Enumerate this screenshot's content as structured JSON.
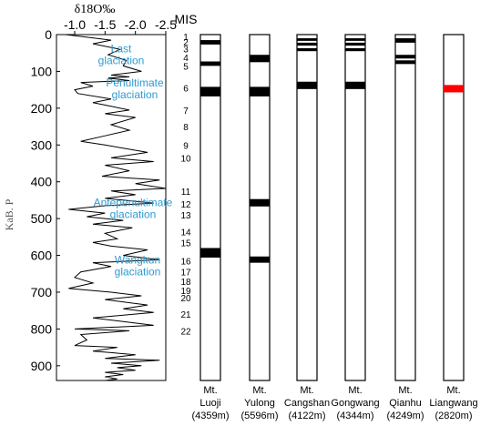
{
  "chart_data": [
    {
      "type": "line",
      "title": "",
      "xlabel": "δ18O‰",
      "ylabel": "KaB. P",
      "xlim": [
        -0.7,
        -2.5
      ],
      "ylim": [
        0,
        940
      ],
      "x_ticks": [
        "-1.0",
        "-1.5",
        "-2.0",
        "-2.5"
      ],
      "y_ticks": [
        "0",
        "100",
        "200",
        "300",
        "400",
        "500",
        "600",
        "700",
        "800",
        "900"
      ],
      "series": [
        {
          "x": [
            -0.85,
            -1.1,
            -1.6,
            -1.3,
            -1.75,
            -1.55,
            -1.85,
            -1.8,
            -2.1,
            -1.6,
            -1.9,
            -1.55,
            -1.9,
            -1.1,
            -1.3,
            -1.0,
            -1.05,
            -1.6,
            -1.3,
            -1.6,
            -1.9,
            -1.5,
            -2.0,
            -1.6,
            -1.9,
            -1.5,
            -1.1,
            -1.5,
            -2.2,
            -1.6,
            -2.3,
            -1.5,
            -1.9,
            -1.45,
            -2.4,
            -2.0,
            -2.5,
            -1.6,
            -2.0,
            -1.5,
            -2.3,
            -1.5,
            -0.9,
            -1.5,
            -1.2,
            -1.8,
            -1.3,
            -1.95,
            -1.5,
            -1.7,
            -1.3,
            -1.6,
            -2.2,
            -1.8,
            -2.4,
            -1.3,
            -1.6,
            -1.1,
            -1.0,
            -1.3,
            -0.9,
            -1.6,
            -2.1,
            -1.5,
            -2.2,
            -1.8,
            -2.3,
            -1.3,
            -1.8,
            -2.3,
            -1.0,
            -1.9,
            -1.1,
            -1.2,
            -1.0,
            -1.7,
            -1.3,
            -2.0,
            -1.5,
            -2.4,
            -1.6,
            -2.1,
            -1.7,
            -2.0,
            -1.5,
            -1.8,
            -1.5,
            -1.7,
            -1.5
          ],
          "y": [
            0,
            5,
            15,
            25,
            40,
            55,
            70,
            85,
            100,
            110,
            115,
            118,
            125,
            130,
            140,
            150,
            160,
            175,
            185,
            195,
            205,
            215,
            225,
            245,
            260,
            275,
            290,
            300,
            320,
            335,
            345,
            355,
            370,
            385,
            395,
            405,
            418,
            425,
            435,
            445,
            458,
            465,
            475,
            485,
            495,
            505,
            515,
            525,
            540,
            555,
            565,
            575,
            585,
            600,
            612,
            620,
            630,
            645,
            660,
            675,
            690,
            700,
            710,
            720,
            735,
            745,
            755,
            770,
            780,
            790,
            800,
            805,
            815,
            830,
            845,
            850,
            860,
            870,
            880,
            885,
            893,
            900,
            905,
            912,
            918,
            924,
            930,
            936,
            940
          ]
        }
      ],
      "annotations": [
        "Last glaciation",
        "Penultimate glaciation",
        "Antepenultimate glaciation",
        "Wangkun glaciation"
      ],
      "glaciation_y": [
        65,
        158,
        483,
        640
      ],
      "grid": false
    },
    {
      "type": "bar",
      "title": "",
      "mis_label": "MIS",
      "mis_stages": [
        {
          "label": "1",
          "y": 5
        },
        {
          "label": "2",
          "y": 20
        },
        {
          "label": "3",
          "y": 38
        },
        {
          "label": "4",
          "y": 62
        },
        {
          "label": "5",
          "y": 85
        },
        {
          "label": "6",
          "y": 145
        },
        {
          "label": "7",
          "y": 205
        },
        {
          "label": "8",
          "y": 250
        },
        {
          "label": "9",
          "y": 300
        },
        {
          "label": "10",
          "y": 335
        },
        {
          "label": "11",
          "y": 425
        },
        {
          "label": "12",
          "y": 460
        },
        {
          "label": "13",
          "y": 490
        },
        {
          "label": "14",
          "y": 535
        },
        {
          "label": "15",
          "y": 565
        },
        {
          "label": "16",
          "y": 615
        },
        {
          "label": "17",
          "y": 645
        },
        {
          "label": "18",
          "y": 670
        },
        {
          "label": "19",
          "y": 695
        },
        {
          "label": "20",
          "y": 715
        },
        {
          "label": "21",
          "y": 760
        },
        {
          "label": "22",
          "y": 805
        }
      ],
      "columns": [
        {
          "name": "Mt.",
          "site": "Luoji",
          "elev": "(4359m)",
          "bands": [
            {
              "from": 15,
              "to": 27
            },
            {
              "from": 73,
              "to": 85
            },
            {
              "from": 142,
              "to": 168
            },
            {
              "from": 580,
              "to": 606
            }
          ]
        },
        {
          "name": "Mt.",
          "site": "Yulong",
          "elev": "(5596m)",
          "bands": [
            {
              "from": 55,
              "to": 75
            },
            {
              "from": 142,
              "to": 168
            },
            {
              "from": 447,
              "to": 467
            },
            {
              "from": 603,
              "to": 620
            }
          ]
        },
        {
          "name": "Mt.",
          "site": "Cangshan",
          "elev": "(4122m)",
          "bands": [
            {
              "from": 10,
              "to": 17
            },
            {
              "from": 22,
              "to": 30
            },
            {
              "from": 37,
              "to": 45
            },
            {
              "from": 128,
              "to": 148
            }
          ]
        },
        {
          "name": "Mt.",
          "site": "Gongwang",
          "elev": "(4344m)",
          "bands": [
            {
              "from": 10,
              "to": 17
            },
            {
              "from": 22,
              "to": 30
            },
            {
              "from": 37,
              "to": 45
            },
            {
              "from": 128,
              "to": 148
            }
          ]
        },
        {
          "name": "Mt.",
          "site": "Qianhu",
          "elev": "(4249m)",
          "bands": [
            {
              "from": 10,
              "to": 22
            },
            {
              "from": 55,
              "to": 65
            },
            {
              "from": 70,
              "to": 80
            }
          ]
        },
        {
          "name": "Mt.",
          "site": "Liangwang",
          "elev": "(2820m)",
          "bands": [
            {
              "from": 137,
              "to": 157,
              "color": "#ff0000"
            }
          ]
        }
      ]
    }
  ]
}
